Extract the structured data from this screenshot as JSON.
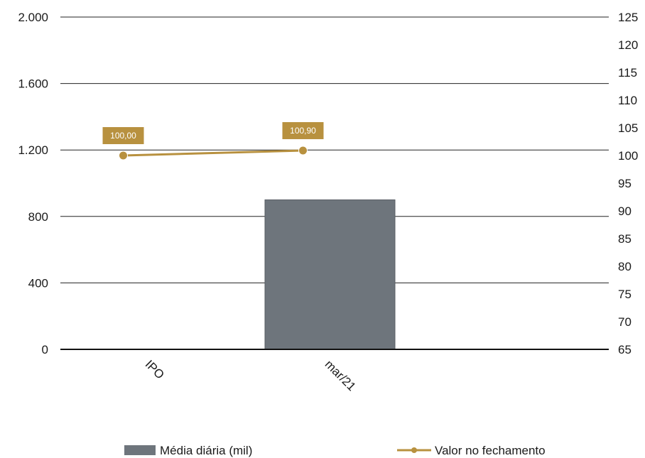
{
  "chart_data": {
    "type": "bar",
    "categories": [
      "IPO",
      "mar/21"
    ],
    "series": [
      {
        "name": "Média diária (mil)",
        "type": "bar",
        "axis": "left",
        "color": "#6e757c",
        "values": [
          0,
          900
        ]
      },
      {
        "name": "Valor no fechamento",
        "type": "line",
        "axis": "right",
        "color": "#b8913f",
        "values": [
          100.0,
          100.9
        ],
        "labels": [
          "100,00",
          "100,90"
        ]
      }
    ],
    "y_left": {
      "ylim": [
        0,
        2000
      ],
      "ticks": [
        "0",
        "400",
        "800",
        "1.200",
        "1.600",
        "2.000"
      ],
      "tick_values": [
        0,
        400,
        800,
        1200,
        1600,
        2000
      ]
    },
    "y_right": {
      "ylim": [
        65,
        125
      ],
      "ticks": [
        "65",
        "70",
        "75",
        "80",
        "85",
        "90",
        "95",
        "100",
        "105",
        "110",
        "115",
        "120",
        "125"
      ],
      "tick_values": [
        65,
        70,
        75,
        80,
        85,
        90,
        95,
        100,
        105,
        110,
        115,
        120,
        125
      ]
    },
    "grid": true,
    "legend_position": "bottom"
  }
}
